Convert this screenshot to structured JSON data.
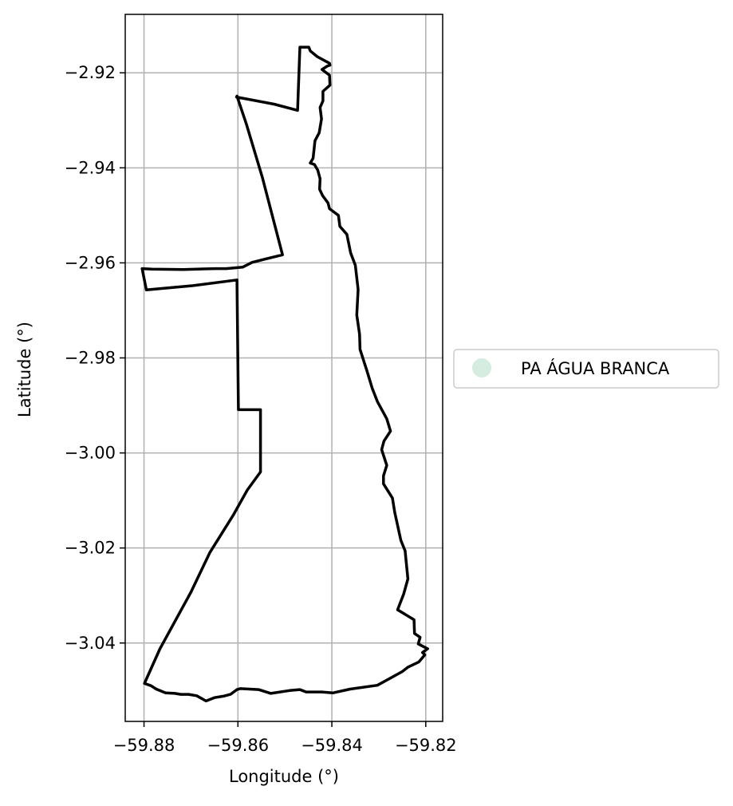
{
  "chart_data": {
    "type": "map",
    "xlabel": "Longitude (°)",
    "ylabel": "Latitude (°)",
    "xlim": [
      -59.884,
      -59.8164
    ],
    "ylim": [
      -3.0565,
      -2.9077
    ],
    "xticks": [
      -59.88,
      -59.86,
      -59.84,
      -59.82
    ],
    "yticks": [
      -2.92,
      -2.94,
      -2.96,
      -2.98,
      -3.0,
      -3.02,
      -3.04
    ],
    "xtick_labels": [
      "−59.88",
      "−59.86",
      "−59.84",
      "−59.82"
    ],
    "ytick_labels": [
      "−2.92",
      "−2.94",
      "−2.96",
      "−2.98",
      "−3.00",
      "−3.02",
      "−3.04"
    ],
    "grid": true,
    "legend_position": "outside-right",
    "legend": [
      {
        "label": "PA ÁGUA BRANCA",
        "color": "#d4ede0",
        "marker": "circle"
      }
    ],
    "series": [
      {
        "name": "PA ÁGUA BRANCA",
        "edge_color": "#000000",
        "fill": "none",
        "points": [
          [
            -59.8468,
            -2.9146
          ],
          [
            -59.8449,
            -2.9146
          ],
          [
            -59.8446,
            -2.9154
          ],
          [
            -59.8431,
            -2.9166
          ],
          [
            -59.8405,
            -2.918
          ],
          [
            -59.8404,
            -2.9184
          ],
          [
            -59.841,
            -2.9186
          ],
          [
            -59.8421,
            -2.9193
          ],
          [
            -59.8405,
            -2.9205
          ],
          [
            -59.8404,
            -2.9226
          ],
          [
            -59.8419,
            -2.9239
          ],
          [
            -59.8419,
            -2.9259
          ],
          [
            -59.8425,
            -2.9273
          ],
          [
            -59.8422,
            -2.9297
          ],
          [
            -59.8427,
            -2.9326
          ],
          [
            -59.8436,
            -2.9343
          ],
          [
            -59.8438,
            -2.9362
          ],
          [
            -59.844,
            -2.938
          ],
          [
            -59.8446,
            -2.939
          ],
          [
            -59.8437,
            -2.9393
          ],
          [
            -59.843,
            -2.9405
          ],
          [
            -59.8425,
            -2.9423
          ],
          [
            -59.8426,
            -2.9445
          ],
          [
            -59.842,
            -2.9458
          ],
          [
            -59.8408,
            -2.9474
          ],
          [
            -59.8405,
            -2.9486
          ],
          [
            -59.8386,
            -2.95
          ],
          [
            -59.8383,
            -2.9523
          ],
          [
            -59.8368,
            -2.954
          ],
          [
            -59.836,
            -2.9579
          ],
          [
            -59.835,
            -2.9605
          ],
          [
            -59.8344,
            -2.9656
          ],
          [
            -59.8347,
            -2.971
          ],
          [
            -59.8341,
            -2.975
          ],
          [
            -59.834,
            -2.9782
          ],
          [
            -59.8325,
            -2.9828
          ],
          [
            -59.8314,
            -2.9864
          ],
          [
            -59.8303,
            -2.9892
          ],
          [
            -59.8283,
            -2.9928
          ],
          [
            -59.8275,
            -2.9954
          ],
          [
            -59.8289,
            -2.9975
          ],
          [
            -59.8294,
            -2.9993
          ],
          [
            -59.8283,
            -3.0026
          ],
          [
            -59.829,
            -3.0048
          ],
          [
            -59.829,
            -3.0065
          ],
          [
            -59.8271,
            -3.0095
          ],
          [
            -59.8266,
            -3.0125
          ],
          [
            -59.8253,
            -3.0184
          ],
          [
            -59.8244,
            -3.0206
          ],
          [
            -59.8238,
            -3.0265
          ],
          [
            -59.8247,
            -3.0297
          ],
          [
            -59.826,
            -3.033
          ],
          [
            -59.8225,
            -3.0351
          ],
          [
            -59.8224,
            -3.038
          ],
          [
            -59.8212,
            -3.0388
          ],
          [
            -59.8216,
            -3.0402
          ],
          [
            -59.8196,
            -3.0412
          ],
          [
            -59.8207,
            -3.042
          ],
          [
            -59.8202,
            -3.0425
          ],
          [
            -59.8215,
            -3.044
          ],
          [
            -59.8238,
            -3.0451
          ],
          [
            -59.825,
            -3.046
          ],
          [
            -59.8268,
            -3.047
          ],
          [
            -59.8303,
            -3.0489
          ],
          [
            -59.8361,
            -3.0497
          ],
          [
            -59.8398,
            -3.0505
          ],
          [
            -59.8422,
            -3.0503
          ],
          [
            -59.8431,
            -3.0503
          ],
          [
            -59.845,
            -3.0503
          ],
          [
            -59.8455,
            -3.0503
          ],
          [
            -59.8468,
            -3.0498
          ],
          [
            -59.849,
            -3.05
          ],
          [
            -59.853,
            -3.0506
          ],
          [
            -59.8556,
            -3.0498
          ],
          [
            -59.8595,
            -3.0496
          ],
          [
            -59.8602,
            -3.0498
          ],
          [
            -59.8616,
            -3.0508
          ],
          [
            -59.8631,
            -3.0512
          ],
          [
            -59.865,
            -3.0515
          ],
          [
            -59.8668,
            -3.0522
          ],
          [
            -59.8688,
            -3.0511
          ],
          [
            -59.8705,
            -3.0508
          ],
          [
            -59.8722,
            -3.0508
          ],
          [
            -59.8734,
            -3.0506
          ],
          [
            -59.8754,
            -3.0505
          ],
          [
            -59.8774,
            -3.0497
          ],
          [
            -59.8785,
            -3.049
          ],
          [
            -59.8799,
            -3.0485
          ],
          [
            -59.8766,
            -3.0412
          ],
          [
            -59.87,
            -3.0293
          ],
          [
            -59.866,
            -3.021
          ],
          [
            -59.861,
            -3.0131
          ],
          [
            -59.858,
            -3.0078
          ],
          [
            -59.8552,
            -3.004
          ],
          [
            -59.8552,
            -2.9909
          ],
          [
            -59.8587,
            -2.9909
          ],
          [
            -59.8599,
            -2.9909
          ],
          [
            -59.8602,
            -2.9636
          ],
          [
            -59.8697,
            -2.9648
          ],
          [
            -59.8795,
            -2.9657
          ],
          [
            -59.8804,
            -2.9612
          ],
          [
            -59.8783,
            -2.9613
          ],
          [
            -59.8716,
            -2.9614
          ],
          [
            -59.8648,
            -2.9612
          ],
          [
            -59.8625,
            -2.9612
          ],
          [
            -59.859,
            -2.9609
          ],
          [
            -59.857,
            -2.9599
          ],
          [
            -59.8538,
            -2.9591
          ],
          [
            -59.8517,
            -2.9586
          ],
          [
            -59.8505,
            -2.9583
          ],
          [
            -59.8548,
            -2.942
          ],
          [
            -59.8582,
            -2.9308
          ],
          [
            -59.8602,
            -2.9249
          ],
          [
            -59.8603,
            -2.9251
          ],
          [
            -59.8523,
            -2.9266
          ],
          [
            -59.8473,
            -2.9279
          ],
          [
            -59.8468,
            -2.9146
          ]
        ]
      }
    ]
  }
}
